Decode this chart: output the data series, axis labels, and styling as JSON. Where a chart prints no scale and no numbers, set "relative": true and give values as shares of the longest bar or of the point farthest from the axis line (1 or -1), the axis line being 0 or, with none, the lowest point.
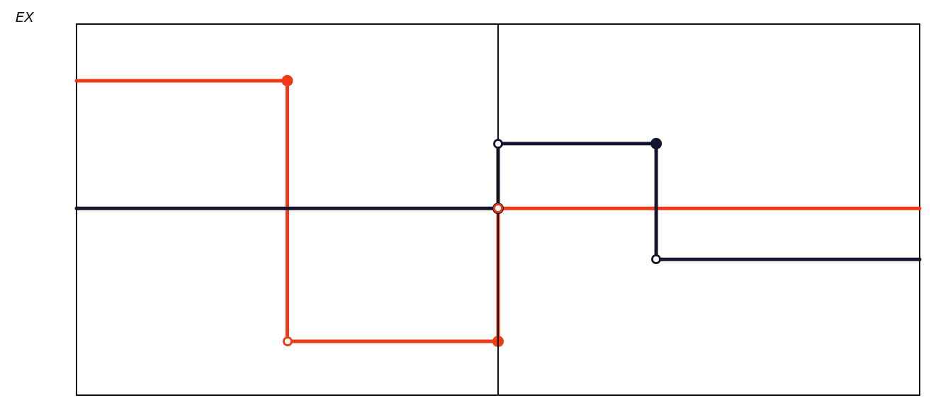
{
  "chart_data": {
    "type": "step",
    "relative": true,
    "ylabel": "EX",
    "grid": false,
    "categories": [
      null,
      null,
      null,
      null,
      null,
      null,
      null,
      null,
      null,
      null,
      null,
      null,
      null,
      null,
      null,
      null,
      null
    ],
    "series": [
      {
        "color": "#f03a17",
        "values": [
          1,
          1,
          1,
          1,
          1,
          0.171,
          0.171,
          0.171,
          0.171,
          0.594,
          0.594,
          0.594,
          0.594,
          0.594,
          0.594,
          0.594,
          0.594
        ]
      },
      {
        "color": "#151530",
        "values": [
          0.594,
          0.594,
          0.594,
          0.594,
          0.594,
          0.594,
          0.594,
          0.594,
          0.594,
          0.8,
          0.8,
          0.8,
          0.432,
          0.432,
          0.432,
          0.432,
          0.432
        ]
      }
    ]
  }
}
